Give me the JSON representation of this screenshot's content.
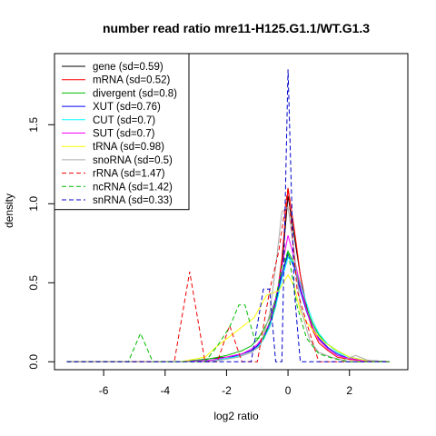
{
  "chart_data": {
    "type": "line",
    "title": "number read ratio mre11-H125.G1.1/WT.G1.3",
    "xlabel": "log2 ratio",
    "ylabel": "density",
    "xlim": [
      -7.6,
      3.9
    ],
    "ylim": [
      -0.05,
      1.95
    ],
    "xticks": [
      -6,
      -4,
      -2,
      0,
      2
    ],
    "yticks": [
      0.0,
      0.5,
      1.0,
      1.5
    ],
    "x_tick_labels": [
      "-6",
      "-4",
      "-2",
      "0",
      "2"
    ],
    "y_tick_labels": [
      "0.0",
      "0.5",
      "1.0",
      "1.5"
    ],
    "legend_position": "top-left",
    "series": [
      {
        "name": "gene (sd=0.59)",
        "color": "#000000",
        "dashed": false,
        "x": [
          -7.2,
          -3.5,
          -3.0,
          -2.5,
          -2.0,
          -1.5,
          -1.2,
          -1.0,
          -0.8,
          -0.6,
          -0.4,
          -0.2,
          0.0,
          0.2,
          0.4,
          0.6,
          0.8,
          1.0,
          1.3,
          1.6,
          2.0,
          2.5,
          3.3
        ],
        "y": [
          0.0,
          0.0,
          0.01,
          0.02,
          0.03,
          0.05,
          0.07,
          0.1,
          0.15,
          0.22,
          0.35,
          0.6,
          1.05,
          0.8,
          0.55,
          0.35,
          0.22,
          0.14,
          0.08,
          0.04,
          0.02,
          0.01,
          0.0
        ]
      },
      {
        "name": "mRNA (sd=0.52)",
        "color": "#ff0000",
        "dashed": false,
        "x": [
          -7.2,
          -3.5,
          -3.0,
          -2.5,
          -2.0,
          -1.5,
          -1.2,
          -1.0,
          -0.8,
          -0.6,
          -0.4,
          -0.2,
          0.0,
          0.2,
          0.4,
          0.6,
          0.8,
          1.0,
          1.3,
          1.6,
          2.0,
          2.5,
          3.3
        ],
        "y": [
          0.0,
          0.0,
          0.005,
          0.01,
          0.02,
          0.04,
          0.06,
          0.09,
          0.14,
          0.22,
          0.36,
          0.65,
          1.1,
          0.85,
          0.55,
          0.33,
          0.2,
          0.12,
          0.07,
          0.03,
          0.015,
          0.005,
          0.0
        ]
      },
      {
        "name": "divergent (sd=0.8)",
        "color": "#00bb00",
        "dashed": false,
        "x": [
          -7.2,
          -3.5,
          -3.0,
          -2.5,
          -2.0,
          -1.5,
          -1.2,
          -1.0,
          -0.8,
          -0.6,
          -0.4,
          -0.2,
          0.0,
          0.2,
          0.4,
          0.6,
          0.8,
          1.0,
          1.3,
          1.6,
          2.0,
          2.5,
          3.3
        ],
        "y": [
          0.0,
          0.0,
          0.01,
          0.02,
          0.04,
          0.07,
          0.1,
          0.14,
          0.2,
          0.28,
          0.4,
          0.55,
          0.7,
          0.62,
          0.47,
          0.34,
          0.24,
          0.17,
          0.11,
          0.07,
          0.03,
          0.01,
          0.0
        ]
      },
      {
        "name": "XUT (sd=0.76)",
        "color": "#0000ff",
        "dashed": false,
        "x": [
          -7.2,
          -3.5,
          -3.0,
          -2.5,
          -2.0,
          -1.5,
          -1.2,
          -1.0,
          -0.8,
          -0.6,
          -0.4,
          -0.2,
          0.0,
          0.2,
          0.4,
          0.6,
          0.8,
          1.0,
          1.3,
          1.6,
          2.0,
          2.5,
          3.3
        ],
        "y": [
          0.0,
          0.0,
          0.005,
          0.01,
          0.02,
          0.05,
          0.07,
          0.1,
          0.15,
          0.24,
          0.38,
          0.55,
          0.68,
          0.6,
          0.45,
          0.32,
          0.22,
          0.15,
          0.09,
          0.05,
          0.02,
          0.01,
          0.0
        ]
      },
      {
        "name": "CUT (sd=0.7)",
        "color": "#00ffff",
        "dashed": false,
        "x": [
          -7.2,
          -3.5,
          -3.0,
          -2.5,
          -2.0,
          -1.5,
          -1.2,
          -1.0,
          -0.8,
          -0.6,
          -0.4,
          -0.2,
          0.0,
          0.2,
          0.4,
          0.6,
          0.8,
          1.0,
          1.3,
          1.6,
          2.0,
          2.5,
          3.3
        ],
        "y": [
          0.0,
          0.0,
          0.005,
          0.01,
          0.02,
          0.04,
          0.06,
          0.09,
          0.14,
          0.22,
          0.35,
          0.52,
          0.66,
          0.62,
          0.5,
          0.37,
          0.26,
          0.18,
          0.11,
          0.06,
          0.03,
          0.01,
          0.0
        ]
      },
      {
        "name": "SUT (sd=0.7)",
        "color": "#ff00ff",
        "dashed": false,
        "x": [
          -7.2,
          -3.5,
          -3.0,
          -2.5,
          -2.0,
          -1.5,
          -1.2,
          -1.0,
          -0.8,
          -0.6,
          -0.4,
          -0.2,
          0.0,
          0.2,
          0.4,
          0.6,
          0.8,
          1.0,
          1.3,
          1.6,
          2.0,
          2.5,
          3.3
        ],
        "y": [
          0.0,
          0.0,
          0.005,
          0.01,
          0.03,
          0.05,
          0.08,
          0.11,
          0.16,
          0.25,
          0.4,
          0.6,
          0.8,
          0.66,
          0.48,
          0.33,
          0.22,
          0.14,
          0.08,
          0.04,
          0.02,
          0.005,
          0.0
        ]
      },
      {
        "name": "tRNA (sd=0.98)",
        "color": "#ffff00",
        "dashed": false,
        "x": [
          -7.2,
          -3.5,
          -2.7,
          -2.3,
          -1.9,
          -1.5,
          -1.1,
          -0.7,
          -0.3,
          0.0,
          0.2,
          0.4,
          0.6,
          0.9,
          1.2,
          1.6,
          2.0,
          2.5,
          3.3
        ],
        "y": [
          0.0,
          0.0,
          0.03,
          0.1,
          0.16,
          0.22,
          0.28,
          0.42,
          0.45,
          0.55,
          0.48,
          0.32,
          0.25,
          0.18,
          0.12,
          0.07,
          0.03,
          0.01,
          0.0
        ]
      },
      {
        "name": "snoRNA (sd=0.5)",
        "color": "#aaaaaa",
        "dashed": false,
        "x": [
          -7.2,
          -2.5,
          -1.6,
          -1.2,
          -0.9,
          -0.6,
          -0.4,
          -0.2,
          0.0,
          0.2,
          0.4,
          0.7,
          1.0,
          1.4,
          1.8,
          2.2,
          2.6,
          3.3
        ],
        "y": [
          0.0,
          0.0,
          0.03,
          0.06,
          0.1,
          0.3,
          0.6,
          0.95,
          0.98,
          0.7,
          0.35,
          0.14,
          0.06,
          0.03,
          0.01,
          0.04,
          0.01,
          0.0
        ]
      },
      {
        "name": "rRNA (sd=1.47)",
        "color": "#ee0000",
        "dashed": true,
        "x": [
          -7.2,
          -3.7,
          -3.2,
          -2.7,
          -2.3,
          -1.9,
          -1.5,
          -1.0,
          -0.6,
          -0.3,
          0.0,
          0.3,
          0.6,
          1.0,
          3.3
        ],
        "y": [
          0.0,
          0.0,
          0.57,
          0.0,
          0.0,
          0.23,
          0.0,
          0.0,
          0.45,
          0.7,
          1.1,
          0.45,
          0.25,
          0.0,
          0.0
        ]
      },
      {
        "name": "ncRNA (sd=1.42)",
        "color": "#00bb00",
        "dashed": true,
        "x": [
          -7.2,
          -5.2,
          -4.8,
          -4.4,
          -2.7,
          -2.3,
          -1.9,
          -1.6,
          -1.4,
          -1.1,
          -0.8,
          -0.5,
          -0.2,
          0.0,
          0.3,
          0.6,
          1.0,
          1.5,
          2.0,
          3.3
        ],
        "y": [
          0.0,
          0.0,
          0.18,
          0.0,
          0.0,
          0.1,
          0.22,
          0.36,
          0.36,
          0.15,
          0.15,
          0.3,
          0.6,
          0.7,
          0.35,
          0.15,
          0.05,
          0.02,
          0.0,
          0.0
        ]
      },
      {
        "name": "snRNA (sd=0.33)",
        "color": "#0000cc",
        "dashed": true,
        "x": [
          -7.2,
          -1.2,
          -0.8,
          -0.6,
          -0.4,
          -0.2,
          0.0,
          0.2,
          0.4,
          3.3
        ],
        "y": [
          0.0,
          0.0,
          0.46,
          0.46,
          0.0,
          0.0,
          1.85,
          0.46,
          0.0,
          0.0
        ]
      }
    ]
  }
}
